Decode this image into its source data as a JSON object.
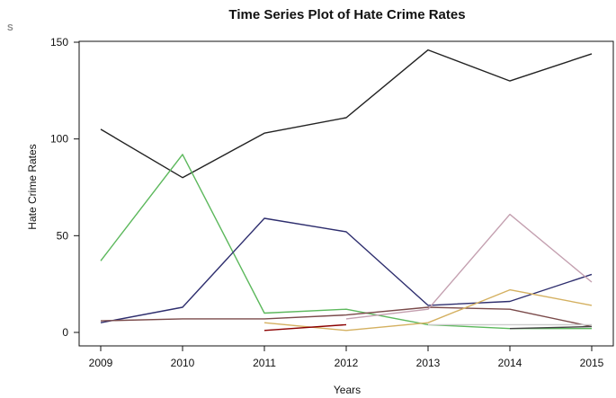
{
  "corner_mark": "S",
  "chart_data": {
    "type": "line",
    "title": "Time Series Plot of Hate Crime Rates",
    "xlabel": "Years",
    "ylabel": "Hate Crime Rates",
    "x": [
      2009,
      2010,
      2011,
      2012,
      2013,
      2014,
      2015
    ],
    "x_tick_labels": [
      "2009",
      "2010",
      "2011",
      "2012",
      "2013",
      "2014",
      "2015"
    ],
    "y_ticks": [
      0,
      50,
      100,
      150
    ],
    "y_tick_labels": [
      "0",
      "50",
      "100",
      "150"
    ],
    "xlim": [
      2009,
      2015
    ],
    "ylim": [
      0,
      150
    ],
    "grid": false,
    "series": [
      {
        "color": "#222222",
        "values": [
          105,
          80,
          103,
          111,
          146,
          130,
          144
        ]
      },
      {
        "color": "#5cb85c",
        "values": [
          37,
          92,
          10,
          12,
          4,
          2,
          2
        ]
      },
      {
        "color": "#2e2e6e",
        "values": [
          5,
          13,
          59,
          52,
          14,
          16,
          30
        ]
      },
      {
        "color": "#7a4a4a",
        "values": [
          6,
          7,
          7,
          9,
          13,
          12,
          3
        ]
      },
      {
        "color": "#c4a0b0",
        "values": [
          null,
          null,
          null,
          7,
          12,
          61,
          26
        ]
      },
      {
        "color": "#d4b060",
        "values": [
          null,
          null,
          5,
          1,
          5,
          22,
          14
        ]
      },
      {
        "color": "#8b0000",
        "values": [
          null,
          null,
          1,
          4,
          null,
          null,
          null
        ]
      },
      {
        "color": "#cccccc",
        "values": [
          null,
          null,
          null,
          null,
          4,
          4,
          4
        ]
      },
      {
        "color": "#444444",
        "values": [
          null,
          null,
          null,
          null,
          null,
          2,
          3
        ]
      }
    ]
  }
}
